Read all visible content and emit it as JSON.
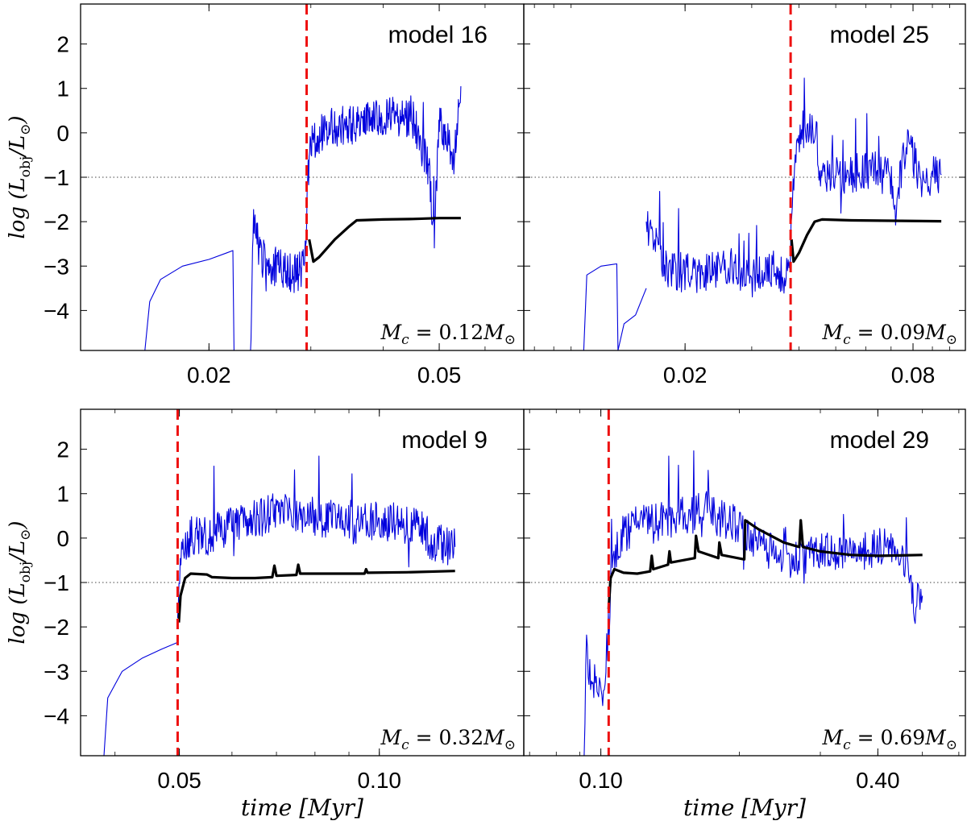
{
  "chart_data": [
    {
      "type": "line",
      "title": "model 16",
      "mass_label": "M_c = 0.12M_⊙",
      "xlabel": "",
      "ylabel": "log (L_obj/L_⊙)",
      "x_scale": "log",
      "xlim": [
        0.012,
        0.07
      ],
      "ylim": [
        -4.9,
        2.9
      ],
      "x_tick_values": [
        0.02,
        0.05
      ],
      "x_tick_labels": [
        "0.02",
        "0.05"
      ],
      "y_tick_values": [
        2,
        1,
        0,
        -1,
        -2,
        -3,
        -4
      ],
      "y_tick_labels": [
        "2",
        "1",
        "0",
        "−1",
        "−2",
        "−3",
        "−4"
      ],
      "reference_line_y": -1,
      "event_line_x": 0.0295,
      "colors": {
        "fluctuating": "#0000dd",
        "smooth": "#000000",
        "event": "#ee1111",
        "reference": "#444444"
      },
      "series": [
        {
          "style": "thin-blue",
          "points": [
            [
              0.0155,
              -4.9
            ],
            [
              0.0158,
              -3.8
            ],
            [
              0.0165,
              -3.3
            ],
            [
              0.018,
              -3.0
            ],
            [
              0.02,
              -2.85
            ],
            [
              0.0215,
              -2.7
            ],
            [
              0.022,
              -2.65
            ],
            [
              0.0221,
              -4.9
            ]
          ]
        },
        {
          "style": "thin-blue",
          "noisy": true,
          "points": [
            [
              0.0236,
              -4.9
            ],
            [
              0.0239,
              -1.9
            ],
            [
              0.0245,
              -2.8
            ],
            [
              0.026,
              -3.0
            ],
            [
              0.028,
              -3.2
            ],
            [
              0.0293,
              -3.0
            ],
            [
              0.0297,
              -0.9
            ],
            [
              0.03,
              -0.2
            ],
            [
              0.032,
              0.1
            ],
            [
              0.036,
              0.2
            ],
            [
              0.04,
              0.4
            ],
            [
              0.045,
              0.3
            ],
            [
              0.048,
              -0.8
            ],
            [
              0.049,
              -2.3
            ],
            [
              0.05,
              0.2
            ],
            [
              0.053,
              -0.5
            ],
            [
              0.0545,
              1.05
            ]
          ]
        },
        {
          "style": "thick-black",
          "points": [
            [
              0.0298,
              -2.4
            ],
            [
              0.0303,
              -2.9
            ],
            [
              0.031,
              -2.8
            ],
            [
              0.033,
              -2.4
            ],
            [
              0.035,
              -2.1
            ],
            [
              0.036,
              -1.97
            ],
            [
              0.04,
              -1.95
            ],
            [
              0.045,
              -1.94
            ],
            [
              0.05,
              -1.92
            ],
            [
              0.0545,
              -1.92
            ]
          ]
        }
      ]
    },
    {
      "type": "line",
      "title": "model 25",
      "mass_label": "M_c = 0.09M_⊙",
      "xlabel": "",
      "ylabel": "",
      "x_scale": "log",
      "xlim": [
        0.0075,
        0.11
      ],
      "ylim": [
        -4.9,
        2.9
      ],
      "x_tick_values": [
        0.02,
        0.08
      ],
      "x_tick_labels": [
        "0.02",
        "0.08"
      ],
      "y_tick_values": [
        2,
        1,
        0,
        -1,
        -2,
        -3,
        -4
      ],
      "y_tick_labels": [
        "2",
        "1",
        "0",
        "−1",
        "−2",
        "−3",
        "−4"
      ],
      "reference_line_y": -1,
      "event_line_x": 0.038,
      "colors": {
        "fluctuating": "#0000dd",
        "smooth": "#000000",
        "event": "#ee1111",
        "reference": "#444444"
      },
      "series": [
        {
          "style": "thin-blue",
          "points": [
            [
              0.0108,
              -4.9
            ],
            [
              0.011,
              -3.2
            ],
            [
              0.012,
              -3.0
            ],
            [
              0.0132,
              -2.95
            ],
            [
              0.0133,
              -4.9
            ]
          ]
        },
        {
          "style": "thin-blue",
          "points": [
            [
              0.0133,
              -4.9
            ],
            [
              0.0138,
              -4.3
            ],
            [
              0.0148,
              -4.1
            ],
            [
              0.0158,
              -3.5
            ]
          ]
        },
        {
          "style": "thin-blue",
          "noisy": true,
          "points": [
            [
              0.0158,
              -2.0
            ],
            [
              0.018,
              -3.1
            ],
            [
              0.022,
              -3.2
            ],
            [
              0.026,
              -3.0
            ],
            [
              0.03,
              -3.3
            ],
            [
              0.034,
              -3.1
            ],
            [
              0.0375,
              -3.2
            ],
            [
              0.038,
              -2.6
            ],
            [
              0.039,
              -0.6
            ],
            [
              0.04,
              0.0
            ],
            [
              0.042,
              0.1
            ],
            [
              0.044,
              0.0
            ],
            [
              0.045,
              -0.85
            ],
            [
              0.05,
              -0.9
            ],
            [
              0.055,
              -0.95
            ],
            [
              0.06,
              -0.8
            ],
            [
              0.065,
              -0.9
            ],
            [
              0.07,
              -1.0
            ],
            [
              0.072,
              -1.9
            ],
            [
              0.075,
              -0.6
            ],
            [
              0.078,
              -0.3
            ],
            [
              0.082,
              -0.8
            ],
            [
              0.086,
              -1.2
            ],
            [
              0.09,
              -0.9
            ],
            [
              0.095,
              -0.95
            ]
          ]
        },
        {
          "style": "thick-black",
          "points": [
            [
              0.0382,
              -2.4
            ],
            [
              0.0387,
              -2.9
            ],
            [
              0.04,
              -2.7
            ],
            [
              0.042,
              -2.3
            ],
            [
              0.044,
              -2.0
            ],
            [
              0.046,
              -1.95
            ],
            [
              0.055,
              -1.97
            ],
            [
              0.07,
              -1.98
            ],
            [
              0.095,
              -1.99
            ]
          ]
        }
      ]
    },
    {
      "type": "line",
      "title": "model 9",
      "mass_label": "M_c = 0.32M_⊙",
      "xlabel": "time [Myr]",
      "ylabel": "log (L_obj/L_⊙)",
      "x_scale": "log",
      "xlim": [
        0.0355,
        0.165
      ],
      "ylim": [
        -4.9,
        2.9
      ],
      "x_tick_values": [
        0.05,
        0.1
      ],
      "x_tick_labels": [
        "0.05",
        "0.10"
      ],
      "y_tick_values": [
        2,
        1,
        0,
        -1,
        -2,
        -3,
        -4
      ],
      "y_tick_labels": [
        "2",
        "1",
        "0",
        "−1",
        "−2",
        "−3",
        "−4"
      ],
      "reference_line_y": -1,
      "event_line_x": 0.0497,
      "colors": {
        "fluctuating": "#0000dd",
        "smooth": "#000000",
        "event": "#ee1111",
        "reference": "#444444"
      },
      "series": [
        {
          "style": "thin-blue",
          "points": [
            [
              0.0385,
              -4.9
            ],
            [
              0.039,
              -3.6
            ],
            [
              0.041,
              -3.0
            ],
            [
              0.044,
              -2.7
            ],
            [
              0.047,
              -2.5
            ],
            [
              0.0497,
              -2.35
            ]
          ]
        },
        {
          "style": "thin-blue",
          "noisy": true,
          "points": [
            [
              0.0497,
              -1.8
            ],
            [
              0.05,
              -0.6
            ],
            [
              0.051,
              -0.2
            ],
            [
              0.052,
              0.05
            ],
            [
              0.054,
              0.05
            ],
            [
              0.055,
              0.05
            ],
            [
              0.056,
              0.1
            ],
            [
              0.06,
              0.3
            ],
            [
              0.065,
              0.4
            ],
            [
              0.07,
              0.6
            ],
            [
              0.08,
              0.5
            ],
            [
              0.09,
              0.3
            ],
            [
              0.1,
              0.4
            ],
            [
              0.11,
              0.3
            ],
            [
              0.115,
              0.2
            ],
            [
              0.12,
              -0.1
            ],
            [
              0.13,
              -0.2
            ]
          ]
        },
        {
          "style": "thick-black",
          "points": [
            [
              0.0499,
              -1.9
            ],
            [
              0.0502,
              -1.3
            ],
            [
              0.051,
              -0.9
            ],
            [
              0.052,
              -0.8
            ],
            [
              0.055,
              -0.82
            ],
            [
              0.056,
              -0.88
            ],
            [
              0.06,
              -0.9
            ],
            [
              0.065,
              -0.9
            ],
            [
              0.069,
              -0.88
            ],
            [
              0.0695,
              -0.62
            ],
            [
              0.07,
              -0.85
            ],
            [
              0.075,
              -0.83
            ],
            [
              0.0755,
              -0.6
            ],
            [
              0.076,
              -0.8
            ],
            [
              0.085,
              -0.8
            ],
            [
              0.095,
              -0.8
            ],
            [
              0.0955,
              -0.7
            ],
            [
              0.096,
              -0.78
            ],
            [
              0.11,
              -0.77
            ],
            [
              0.13,
              -0.74
            ]
          ]
        }
      ]
    },
    {
      "type": "line",
      "title": "model 29",
      "mass_label": "M_c = 0.69M_⊙",
      "xlabel": "time [Myr]",
      "ylabel": "",
      "x_scale": "log",
      "xlim": [
        0.068,
        0.62
      ],
      "ylim": [
        -4.9,
        2.9
      ],
      "x_tick_values": [
        0.1,
        0.4
      ],
      "x_tick_labels": [
        "0.10",
        "0.40"
      ],
      "y_tick_values": [
        2,
        1,
        0,
        -1,
        -2,
        -3,
        -4
      ],
      "y_tick_labels": [
        "2",
        "1",
        "0",
        "−1",
        "−2",
        "−3",
        "−4"
      ],
      "reference_line_y": -1,
      "event_line_x": 0.104,
      "colors": {
        "fluctuating": "#0000dd",
        "smooth": "#000000",
        "event": "#ee1111",
        "reference": "#444444"
      },
      "series": [
        {
          "style": "thin-blue",
          "noisy": true,
          "points": [
            [
              0.092,
              -4.9
            ],
            [
              0.093,
              -2.6
            ],
            [
              0.096,
              -3.2
            ],
            [
              0.099,
              -3.5
            ],
            [
              0.102,
              -3.3
            ],
            [
              0.104,
              -2.0
            ],
            [
              0.106,
              -0.5
            ],
            [
              0.11,
              0.0
            ],
            [
              0.12,
              0.4
            ],
            [
              0.13,
              0.3
            ],
            [
              0.15,
              0.5
            ],
            [
              0.17,
              0.6
            ],
            [
              0.2,
              0.3
            ],
            [
              0.23,
              -0.3
            ],
            [
              0.26,
              -0.5
            ],
            [
              0.3,
              -0.3
            ],
            [
              0.35,
              -0.4
            ],
            [
              0.4,
              -0.2
            ],
            [
              0.43,
              -0.1
            ],
            [
              0.46,
              -0.6
            ],
            [
              0.48,
              -1.5
            ],
            [
              0.5,
              -1.3
            ]
          ]
        },
        {
          "style": "thick-black",
          "points": [
            [
              0.104,
              -1.6
            ],
            [
              0.105,
              -0.9
            ],
            [
              0.107,
              -0.7
            ],
            [
              0.112,
              -0.78
            ],
            [
              0.12,
              -0.8
            ],
            [
              0.128,
              -0.75
            ],
            [
              0.129,
              -0.4
            ],
            [
              0.13,
              -0.7
            ],
            [
              0.14,
              -0.6
            ],
            [
              0.141,
              -0.3
            ],
            [
              0.142,
              -0.55
            ],
            [
              0.16,
              -0.45
            ],
            [
              0.161,
              0.05
            ],
            [
              0.163,
              -0.3
            ],
            [
              0.18,
              -0.45
            ],
            [
              0.181,
              -0.1
            ],
            [
              0.183,
              -0.38
            ],
            [
              0.205,
              -0.48
            ],
            [
              0.206,
              0.4
            ],
            [
              0.22,
              0.2
            ],
            [
              0.25,
              -0.1
            ],
            [
              0.27,
              -0.2
            ],
            [
              0.272,
              0.4
            ],
            [
              0.275,
              -0.2
            ],
            [
              0.3,
              -0.3
            ],
            [
              0.35,
              -0.38
            ],
            [
              0.4,
              -0.4
            ],
            [
              0.45,
              -0.39
            ],
            [
              0.5,
              -0.38
            ]
          ]
        }
      ]
    }
  ]
}
